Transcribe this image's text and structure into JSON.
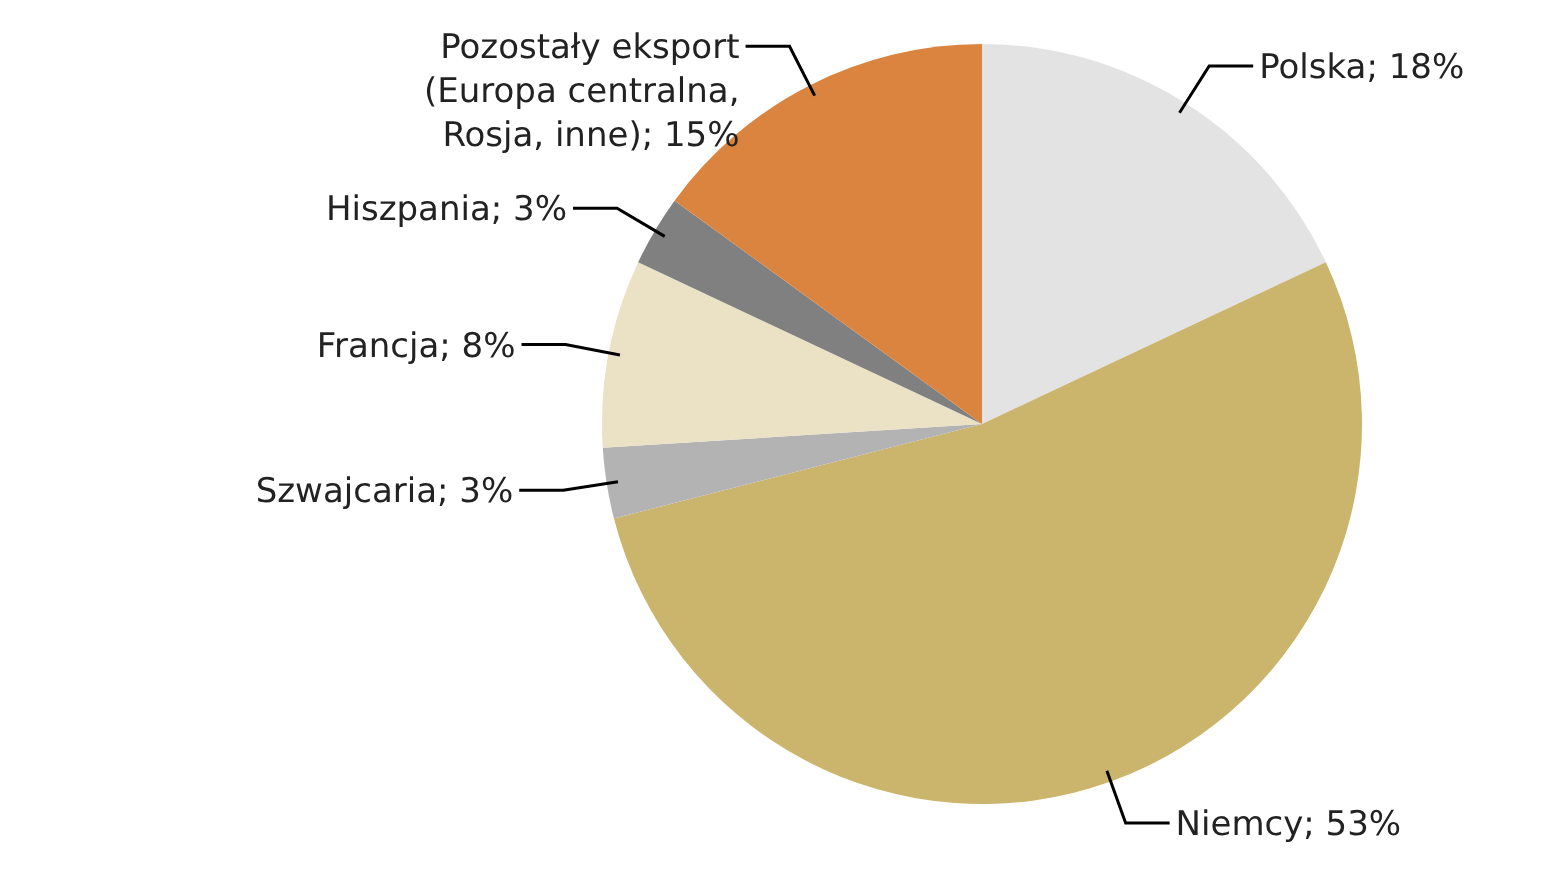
{
  "chart_data": {
    "type": "pie",
    "categories": [
      "Polska",
      "Niemcy",
      "Szwajcaria",
      "Francja",
      "Hiszpania",
      "Pozostały eksport (Europa centralna, Rosja, inne)"
    ],
    "values": [
      18,
      53,
      3,
      8,
      3,
      15
    ],
    "colors": [
      "#e3e3e3",
      "#cbb46c",
      "#b3b3b3",
      "#ebe1c5",
      "#808080",
      "#db8440"
    ],
    "value_labels": [
      "; 18%",
      "; 53%",
      "; 3%",
      "; 8%",
      "; 3%",
      "; 15%"
    ]
  }
}
